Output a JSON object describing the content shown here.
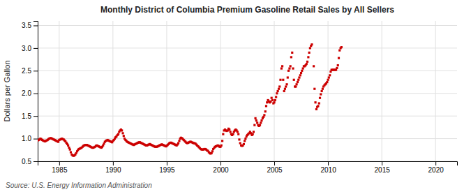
{
  "chart_data": {
    "type": "scatter",
    "title": "Monthly District of Columbia Premium Gasoline Retail Sales by All Sellers",
    "ylabel": "Dollars per Gallon",
    "source": "Source: U.S. Energy Information Administration",
    "color": "#cc0000",
    "marker": "square",
    "grid": true,
    "xlim": [
      1983,
      2022
    ],
    "ylim": [
      0.5,
      3.6
    ],
    "xticks": [
      1985,
      1990,
      1995,
      2000,
      2005,
      2010,
      2015,
      2020
    ],
    "yticks": [
      0.5,
      {
        "value": 1.0,
        "label": "1.0"
      },
      1.5,
      {
        "value": 2.0,
        "label": "2.0"
      },
      2.5,
      {
        "value": 3.0,
        "label": "3.0"
      },
      3.5
    ],
    "x": [
      1983.0,
      1983.08,
      1983.17,
      1983.25,
      1983.33,
      1983.42,
      1983.5,
      1983.58,
      1983.67,
      1983.75,
      1983.83,
      1983.92,
      1984.0,
      1984.08,
      1984.17,
      1984.25,
      1984.33,
      1984.42,
      1984.5,
      1984.58,
      1984.67,
      1984.75,
      1984.83,
      1984.92,
      1985.0,
      1985.08,
      1985.17,
      1985.25,
      1985.33,
      1985.42,
      1985.5,
      1985.58,
      1985.67,
      1985.75,
      1985.83,
      1985.92,
      1986.0,
      1986.08,
      1986.17,
      1986.25,
      1986.33,
      1986.42,
      1986.5,
      1986.58,
      1986.67,
      1986.75,
      1986.83,
      1986.92,
      1987.0,
      1987.08,
      1987.17,
      1987.25,
      1987.33,
      1987.42,
      1987.5,
      1987.58,
      1987.67,
      1987.75,
      1987.83,
      1987.92,
      1988.0,
      1988.08,
      1988.17,
      1988.25,
      1988.33,
      1988.42,
      1988.5,
      1988.58,
      1988.67,
      1988.75,
      1988.83,
      1988.92,
      1989.0,
      1989.08,
      1989.17,
      1989.25,
      1989.33,
      1989.42,
      1989.5,
      1989.58,
      1989.67,
      1989.75,
      1989.83,
      1989.92,
      1990.0,
      1990.08,
      1990.17,
      1990.25,
      1990.33,
      1990.42,
      1990.5,
      1990.58,
      1990.67,
      1990.75,
      1990.83,
      1990.92,
      1991.0,
      1991.08,
      1991.17,
      1991.25,
      1991.33,
      1991.42,
      1991.5,
      1991.58,
      1991.67,
      1991.75,
      1991.83,
      1991.92,
      1992.0,
      1992.08,
      1992.17,
      1992.25,
      1992.33,
      1992.42,
      1992.5,
      1992.58,
      1992.67,
      1992.75,
      1992.83,
      1992.92,
      1993.0,
      1993.08,
      1993.17,
      1993.25,
      1993.33,
      1993.42,
      1993.5,
      1993.58,
      1993.67,
      1993.75,
      1993.83,
      1993.92,
      1994.0,
      1994.08,
      1994.17,
      1994.25,
      1994.33,
      1994.42,
      1994.5,
      1994.58,
      1994.67,
      1994.75,
      1994.83,
      1994.92,
      1995.0,
      1995.08,
      1995.17,
      1995.25,
      1995.33,
      1995.42,
      1995.5,
      1995.58,
      1995.67,
      1995.75,
      1995.83,
      1995.92,
      1996.0,
      1996.08,
      1996.17,
      1996.25,
      1996.33,
      1996.42,
      1996.5,
      1996.58,
      1996.67,
      1996.75,
      1996.83,
      1996.92,
      1997.0,
      1997.08,
      1997.17,
      1997.25,
      1997.33,
      1997.42,
      1997.5,
      1997.58,
      1997.67,
      1997.75,
      1997.83,
      1997.92,
      1998.0,
      1998.08,
      1998.17,
      1998.25,
      1998.33,
      1998.42,
      1998.5,
      1998.58,
      1998.67,
      1998.75,
      1998.83,
      1998.92,
      1999.0,
      1999.08,
      1999.17,
      1999.25,
      1999.33,
      1999.42,
      1999.5,
      1999.58,
      1999.67,
      1999.75,
      1999.83,
      1999.92,
      2000.0,
      2000.08,
      2000.17,
      2000.25,
      2000.33,
      2000.42,
      2000.5,
      2000.58,
      2000.67,
      2000.75,
      2000.83,
      2000.92,
      2001.0,
      2001.08,
      2001.17,
      2001.25,
      2001.33,
      2001.42,
      2001.5,
      2001.58,
      2001.67,
      2001.75,
      2001.83,
      2001.92,
      2002.0,
      2002.08,
      2002.17,
      2002.25,
      2002.33,
      2002.42,
      2002.5,
      2002.58,
      2002.67,
      2002.75,
      2002.83,
      2002.92,
      2003.0,
      2003.08,
      2003.17,
      2003.25,
      2003.33,
      2003.42,
      2003.5,
      2003.58,
      2003.67,
      2003.75,
      2003.83,
      2003.92,
      2004.0,
      2004.08,
      2004.17,
      2004.25,
      2004.33,
      2004.42,
      2004.5,
      2004.58,
      2004.67,
      2004.75,
      2004.83,
      2004.92,
      2005.0,
      2005.08,
      2005.17,
      2005.25,
      2005.33,
      2005.42,
      2005.5,
      2005.58,
      2005.67,
      2005.75,
      2005.83,
      2005.92,
      2006.0,
      2006.08,
      2006.17,
      2006.25,
      2006.33,
      2006.42,
      2006.5,
      2006.58,
      2006.67,
      2006.75,
      2006.83,
      2006.92,
      2007.0,
      2007.08,
      2007.17,
      2007.25,
      2007.33,
      2007.42,
      2007.5,
      2007.58,
      2007.67,
      2007.75,
      2007.83,
      2007.92,
      2008.0,
      2008.08,
      2008.17,
      2008.25,
      2008.33,
      2008.42,
      2008.5,
      2008.67,
      2008.75,
      2008.83,
      2008.92,
      2009.0,
      2009.08,
      2009.17,
      2009.25,
      2009.33,
      2009.42,
      2009.5,
      2009.58,
      2009.67,
      2009.75,
      2009.83,
      2009.92,
      2010.0,
      2010.08,
      2010.17,
      2010.25,
      2010.33,
      2010.42,
      2010.5,
      2010.58,
      2010.67,
      2010.75,
      2010.83,
      2010.92,
      2011.0,
      2011.08,
      2011.17,
      2011.25
    ],
    "values": [
      0.96,
      0.97,
      0.98,
      1.0,
      0.99,
      0.97,
      0.96,
      0.95,
      0.94,
      0.95,
      0.96,
      0.97,
      0.99,
      1.0,
      1.01,
      1.01,
      1.0,
      0.99,
      0.98,
      0.97,
      0.96,
      0.95,
      0.94,
      0.93,
      0.97,
      0.98,
      0.99,
      1.0,
      0.99,
      0.98,
      0.96,
      0.94,
      0.91,
      0.88,
      0.85,
      0.8,
      0.76,
      0.7,
      0.65,
      0.63,
      0.62,
      0.63,
      0.65,
      0.68,
      0.72,
      0.75,
      0.77,
      0.78,
      0.79,
      0.8,
      0.82,
      0.84,
      0.85,
      0.86,
      0.86,
      0.86,
      0.85,
      0.84,
      0.83,
      0.82,
      0.81,
      0.8,
      0.8,
      0.81,
      0.82,
      0.84,
      0.85,
      0.84,
      0.83,
      0.82,
      0.81,
      0.8,
      0.82,
      0.85,
      0.89,
      0.93,
      0.95,
      0.96,
      0.97,
      0.96,
      0.95,
      0.94,
      0.93,
      0.92,
      0.95,
      0.97,
      1.0,
      1.03,
      1.05,
      1.08,
      1.1,
      1.15,
      1.18,
      1.2,
      1.18,
      1.12,
      1.06,
      1.0,
      0.97,
      0.95,
      0.93,
      0.92,
      0.91,
      0.9,
      0.89,
      0.88,
      0.87,
      0.86,
      0.87,
      0.88,
      0.89,
      0.9,
      0.91,
      0.92,
      0.92,
      0.91,
      0.9,
      0.89,
      0.88,
      0.87,
      0.86,
      0.85,
      0.85,
      0.86,
      0.87,
      0.88,
      0.87,
      0.86,
      0.85,
      0.84,
      0.83,
      0.82,
      0.82,
      0.82,
      0.83,
      0.84,
      0.85,
      0.86,
      0.87,
      0.87,
      0.86,
      0.85,
      0.84,
      0.83,
      0.84,
      0.86,
      0.88,
      0.9,
      0.91,
      0.91,
      0.9,
      0.89,
      0.88,
      0.87,
      0.86,
      0.85,
      0.87,
      0.9,
      0.95,
      1.0,
      1.02,
      1.01,
      0.99,
      0.97,
      0.95,
      0.93,
      0.91,
      0.9,
      0.91,
      0.92,
      0.93,
      0.93,
      0.92,
      0.91,
      0.9,
      0.9,
      0.89,
      0.87,
      0.85,
      0.83,
      0.81,
      0.79,
      0.77,
      0.76,
      0.76,
      0.76,
      0.77,
      0.77,
      0.76,
      0.74,
      0.73,
      0.7,
      0.68,
      0.67,
      0.68,
      0.72,
      0.77,
      0.8,
      0.82,
      0.83,
      0.84,
      0.85,
      0.84,
      0.82,
      0.82,
      0.85,
      0.95,
      1.1,
      1.18,
      1.2,
      1.18,
      1.17,
      1.18,
      1.22,
      1.2,
      1.15,
      1.1,
      1.08,
      1.1,
      1.15,
      1.18,
      1.2,
      1.18,
      1.15,
      1.1,
      0.98,
      0.9,
      0.85,
      0.84,
      0.85,
      0.88,
      0.95,
      1.0,
      1.05,
      1.08,
      1.1,
      1.12,
      1.15,
      1.12,
      1.08,
      1.1,
      1.15,
      1.3,
      1.45,
      1.4,
      1.35,
      1.3,
      1.28,
      1.3,
      1.35,
      1.4,
      1.45,
      1.48,
      1.52,
      1.6,
      1.72,
      1.8,
      1.85,
      1.82,
      1.8,
      1.82,
      1.9,
      1.85,
      1.78,
      1.8,
      1.85,
      1.92,
      2.0,
      2.05,
      2.1,
      2.15,
      2.3,
      2.55,
      2.6,
      2.3,
      2.05,
      2.1,
      2.15,
      2.2,
      2.35,
      2.5,
      2.55,
      2.6,
      2.8,
      2.9,
      2.55,
      2.3,
      2.15,
      2.15,
      2.2,
      2.25,
      2.3,
      2.35,
      2.4,
      2.45,
      2.5,
      2.55,
      2.6,
      2.6,
      2.62,
      2.65,
      2.7,
      2.8,
      2.9,
      3.0,
      3.05,
      3.08,
      2.6,
      2.1,
      1.8,
      1.65,
      1.7,
      1.72,
      1.78,
      1.9,
      1.98,
      2.05,
      2.1,
      2.15,
      2.18,
      2.2,
      2.22,
      2.25,
      2.3,
      2.35,
      2.4,
      2.48,
      2.52,
      2.52,
      2.52,
      2.52,
      2.52,
      2.52,
      2.56,
      2.62,
      2.78,
      2.95,
      3.0,
      3.02
    ]
  }
}
